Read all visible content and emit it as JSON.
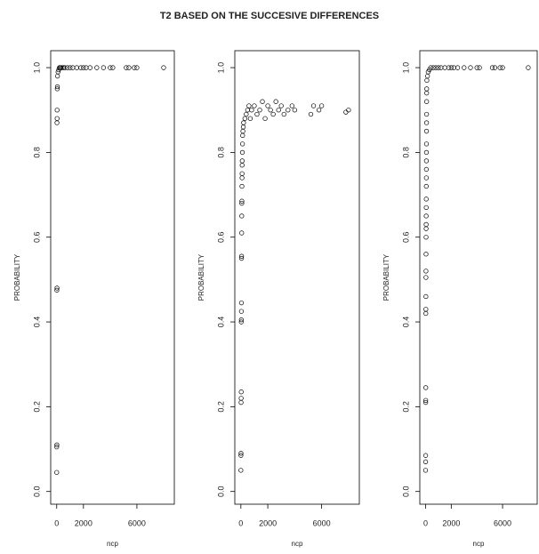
{
  "title": "T2 BASED ON THE SUCCESIVE DIFFERENCES",
  "chart_data": [
    {
      "type": "scatter",
      "xlabel": "ncp",
      "ylabel": "PROBABILITY",
      "xlim": [
        -450,
        8800
      ],
      "ylim": [
        -0.03,
        1.04
      ],
      "xticks": [
        0,
        2000,
        6000
      ],
      "yticks": [
        {
          "value": 0,
          "label": "0.0"
        },
        0.2,
        0.4,
        0.6,
        0.8,
        {
          "value": 1,
          "label": "1.0"
        }
      ],
      "x": [
        0,
        0,
        10,
        10,
        20,
        20,
        30,
        30,
        40,
        50,
        60,
        100,
        150,
        200,
        250,
        300,
        400,
        500,
        600,
        800,
        1000,
        1200,
        1500,
        1800,
        2000,
        2200,
        2500,
        3000,
        3500,
        4000,
        4200,
        5200,
        5400,
        5800,
        6000,
        8000
      ],
      "values": [
        0.045,
        0.105,
        0.11,
        0.475,
        0.48,
        0.87,
        0.88,
        0.9,
        0.95,
        0.955,
        0.98,
        0.99,
        0.995,
        1,
        1,
        1,
        1,
        1,
        1,
        1,
        1,
        1,
        1,
        1,
        1,
        1,
        1,
        1,
        1,
        1,
        1,
        1,
        1,
        1,
        1,
        1
      ]
    },
    {
      "type": "scatter",
      "xlabel": "ncp",
      "ylabel": "PROBABILITY",
      "xlim": [
        -450,
        8800
      ],
      "ylim": [
        -0.03,
        1.04
      ],
      "xticks": [
        0,
        2000,
        6000
      ],
      "yticks": [
        {
          "value": 0,
          "label": "0.0"
        },
        0.2,
        0.4,
        0.6,
        0.8,
        {
          "value": 1,
          "label": "1.0"
        }
      ],
      "x": [
        0,
        5,
        10,
        15,
        20,
        25,
        30,
        35,
        40,
        45,
        50,
        55,
        60,
        65,
        70,
        75,
        80,
        85,
        90,
        95,
        100,
        110,
        120,
        130,
        150,
        180,
        200,
        300,
        400,
        500,
        600,
        700,
        800,
        1000,
        1200,
        1400,
        1600,
        1800,
        2000,
        2200,
        2400,
        2600,
        2800,
        3000,
        3200,
        3500,
        3800,
        4000,
        5200,
        5400,
        5800,
        6000,
        7800,
        8000
      ],
      "values": [
        0.05,
        0.085,
        0.09,
        0.21,
        0.22,
        0.235,
        0.4,
        0.405,
        0.425,
        0.445,
        0.55,
        0.555,
        0.61,
        0.65,
        0.68,
        0.685,
        0.72,
        0.74,
        0.75,
        0.77,
        0.78,
        0.8,
        0.82,
        0.84,
        0.85,
        0.86,
        0.87,
        0.88,
        0.89,
        0.9,
        0.91,
        0.88,
        0.9,
        0.91,
        0.89,
        0.9,
        0.92,
        0.88,
        0.91,
        0.9,
        0.89,
        0.92,
        0.9,
        0.91,
        0.89,
        0.9,
        0.91,
        0.9,
        0.89,
        0.91,
        0.9,
        0.91,
        0.895,
        0.9
      ]
    },
    {
      "type": "scatter",
      "xlabel": "ncp",
      "ylabel": "PROBABILITY",
      "xlim": [
        -450,
        8700
      ],
      "ylim": [
        -0.03,
        1.04
      ],
      "xticks": [
        0,
        2000,
        6000
      ],
      "yticks": [
        {
          "value": 0,
          "label": "0.0"
        },
        0.2,
        0.4,
        0.6,
        0.8,
        {
          "value": 1,
          "label": "1.0"
        }
      ],
      "x": [
        0,
        3,
        6,
        9,
        12,
        15,
        18,
        21,
        24,
        27,
        30,
        33,
        36,
        39,
        42,
        45,
        48,
        51,
        54,
        57,
        60,
        63,
        66,
        69,
        72,
        75,
        78,
        81,
        84,
        87,
        100,
        150,
        200,
        300,
        400,
        600,
        800,
        1000,
        1200,
        1500,
        1800,
        2000,
        2200,
        2500,
        3000,
        3500,
        4000,
        4200,
        5200,
        5400,
        5800,
        6000,
        8000
      ],
      "values": [
        0.05,
        0.07,
        0.085,
        0.21,
        0.215,
        0.245,
        0.42,
        0.43,
        0.46,
        0.505,
        0.52,
        0.56,
        0.6,
        0.62,
        0.63,
        0.65,
        0.67,
        0.69,
        0.72,
        0.74,
        0.76,
        0.78,
        0.8,
        0.82,
        0.85,
        0.87,
        0.89,
        0.92,
        0.94,
        0.95,
        0.97,
        0.98,
        0.99,
        0.995,
        1,
        1,
        1,
        1,
        1,
        1,
        1,
        1,
        1,
        1,
        1,
        1,
        1,
        1,
        1,
        1,
        1,
        1,
        1
      ]
    }
  ]
}
